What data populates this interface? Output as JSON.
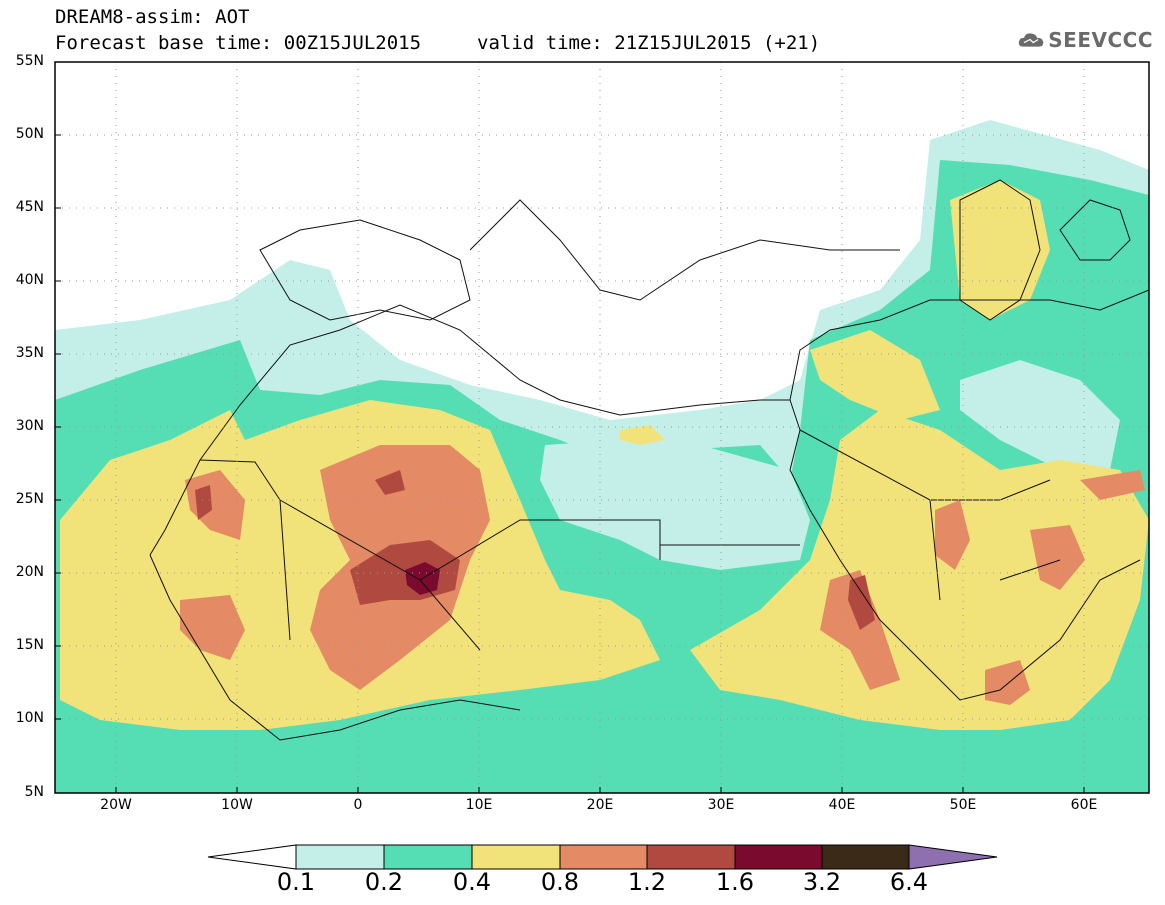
{
  "header": {
    "title_line1": "DREAM8-assim: AOT",
    "title_line2": "Forecast base time: 00Z15JUL2015",
    "valid_time": "valid time: 21Z15JUL2015 (+21)",
    "logo_text": "SEEVCCC"
  },
  "axes": {
    "lat_labels": [
      "55N",
      "50N",
      "45N",
      "40N",
      "35N",
      "30N",
      "25N",
      "20N",
      "15N",
      "10N",
      "5N"
    ],
    "lon_labels": [
      "20W",
      "10W",
      "0",
      "10E",
      "20E",
      "30E",
      "40E",
      "50E",
      "60E"
    ],
    "lon_range": [
      -25,
      65
    ],
    "lat_range": [
      5,
      55
    ]
  },
  "legend": {
    "thresholds": [
      "0.1",
      "0.2",
      "0.4",
      "0.8",
      "1.2",
      "1.6",
      "3.2",
      "6.4"
    ],
    "colors": [
      "#ffffff",
      "#c3efe8",
      "#55ddb4",
      "#f2e27a",
      "#e48a64",
      "#b04a40",
      "#7a0a2e",
      "#3b2a18",
      "#8e6fb0"
    ]
  }
}
